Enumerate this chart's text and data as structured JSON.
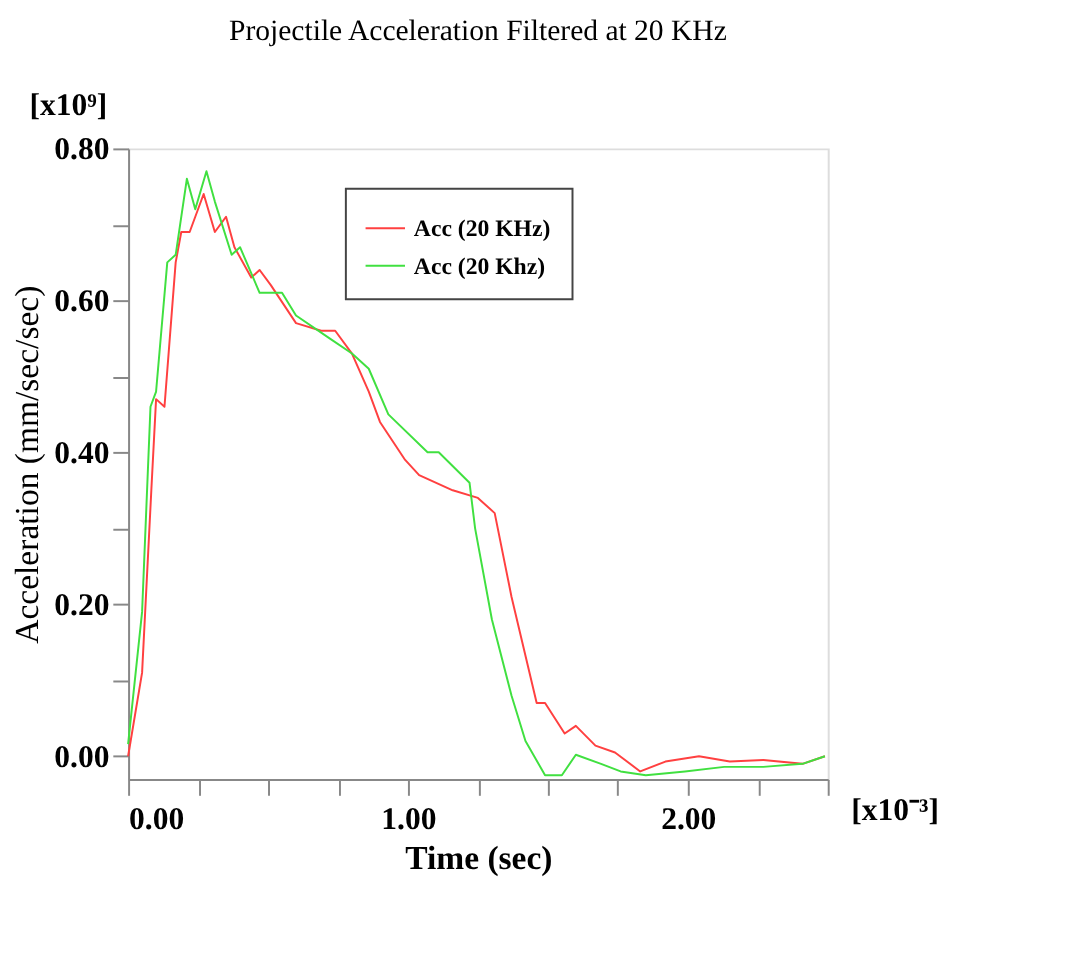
{
  "chart_data": {
    "type": "line",
    "title": "Projectile Acceleration Filtered at 20 KHz",
    "xlabel": "Time (sec)",
    "ylabel": "Acceleration (mm/sec/sec)",
    "annotations": [
      "[x10⁹]",
      "[x10⁻³]"
    ],
    "xlim": [
      0,
      2.5
    ],
    "ylim": [
      -0.03,
      0.8
    ],
    "xticks": [
      {
        "value": 0,
        "label": "0.00"
      },
      {
        "value": 0.25,
        "label": null
      },
      {
        "value": 0.5,
        "label": null
      },
      {
        "value": 0.75,
        "label": null
      },
      {
        "value": 1,
        "label": "1.00"
      },
      {
        "value": 1.25,
        "label": null
      },
      {
        "value": 1.5,
        "label": null
      },
      {
        "value": 1.75,
        "label": null
      },
      {
        "value": 2,
        "label": "2.00"
      },
      {
        "value": 2.25,
        "label": null
      },
      {
        "value": 2.5,
        "label": null
      }
    ],
    "yticks": [
      {
        "value": 0,
        "label": "0.00"
      },
      {
        "value": 0.1,
        "label": null
      },
      {
        "value": 0.2,
        "label": "0.20"
      },
      {
        "value": 0.3,
        "label": null
      },
      {
        "value": 0.4,
        "label": "0.40"
      },
      {
        "value": 0.5,
        "label": null
      },
      {
        "value": 0.6,
        "label": "0.60"
      },
      {
        "value": 0.7,
        "label": null
      },
      {
        "value": 0.8,
        "label": "0.80"
      }
    ],
    "grid": false,
    "legend": "top right",
    "line_style": "solid",
    "marker": "none",
    "series": [
      {
        "name": "Acc (20 KHz)",
        "color": "#ff4040",
        "x": [
          0,
          0.05,
          0.083,
          0.1,
          0.13,
          0.17,
          0.19,
          0.22,
          0.27,
          0.31,
          0.35,
          0.38,
          0.44,
          0.47,
          0.51,
          0.6,
          0.69,
          0.74,
          0.8,
          0.86,
          0.9,
          0.99,
          1.04,
          1.16,
          1.25,
          1.31,
          1.37,
          1.46,
          1.49,
          1.56,
          1.6,
          1.67,
          1.74,
          1.83,
          1.92,
          2.04,
          2.15,
          2.27,
          2.41,
          2.49
        ],
        "values": [
          0,
          0.11,
          0.35,
          0.47,
          0.46,
          0.65,
          0.69,
          0.69,
          0.74,
          0.69,
          0.71,
          0.67,
          0.63,
          0.64,
          0.62,
          0.57,
          0.56,
          0.56,
          0.53,
          0.48,
          0.44,
          0.39,
          0.37,
          0.35,
          0.34,
          0.32,
          0.21,
          0.07,
          0.07,
          0.03,
          0.04,
          0.014,
          0.005,
          -0.02,
          -0.007,
          0,
          -0.007,
          -0.005,
          -0.01,
          0
        ]
      },
      {
        "name": "Acc (20 Khz)",
        "color": "#40e040",
        "x": [
          0,
          0.05,
          0.08,
          0.1,
          0.14,
          0.17,
          0.21,
          0.24,
          0.28,
          0.31,
          0.37,
          0.4,
          0.47,
          0.55,
          0.6,
          0.72,
          0.8,
          0.86,
          0.93,
          1.07,
          1.11,
          1.22,
          1.24,
          1.3,
          1.37,
          1.42,
          1.49,
          1.55,
          1.6,
          1.69,
          1.76,
          1.85,
          1.99,
          2.13,
          2.27,
          2.41,
          2.49
        ],
        "values": [
          0.016,
          0.19,
          0.46,
          0.48,
          0.65,
          0.66,
          0.76,
          0.72,
          0.77,
          0.73,
          0.66,
          0.67,
          0.61,
          0.61,
          0.58,
          0.55,
          0.53,
          0.51,
          0.45,
          0.4,
          0.4,
          0.36,
          0.3,
          0.18,
          0.08,
          0.02,
          -0.025,
          -0.025,
          0.002,
          -0.01,
          -0.02,
          -0.025,
          -0.02,
          -0.014,
          -0.014,
          -0.01,
          0
        ]
      }
    ]
  }
}
